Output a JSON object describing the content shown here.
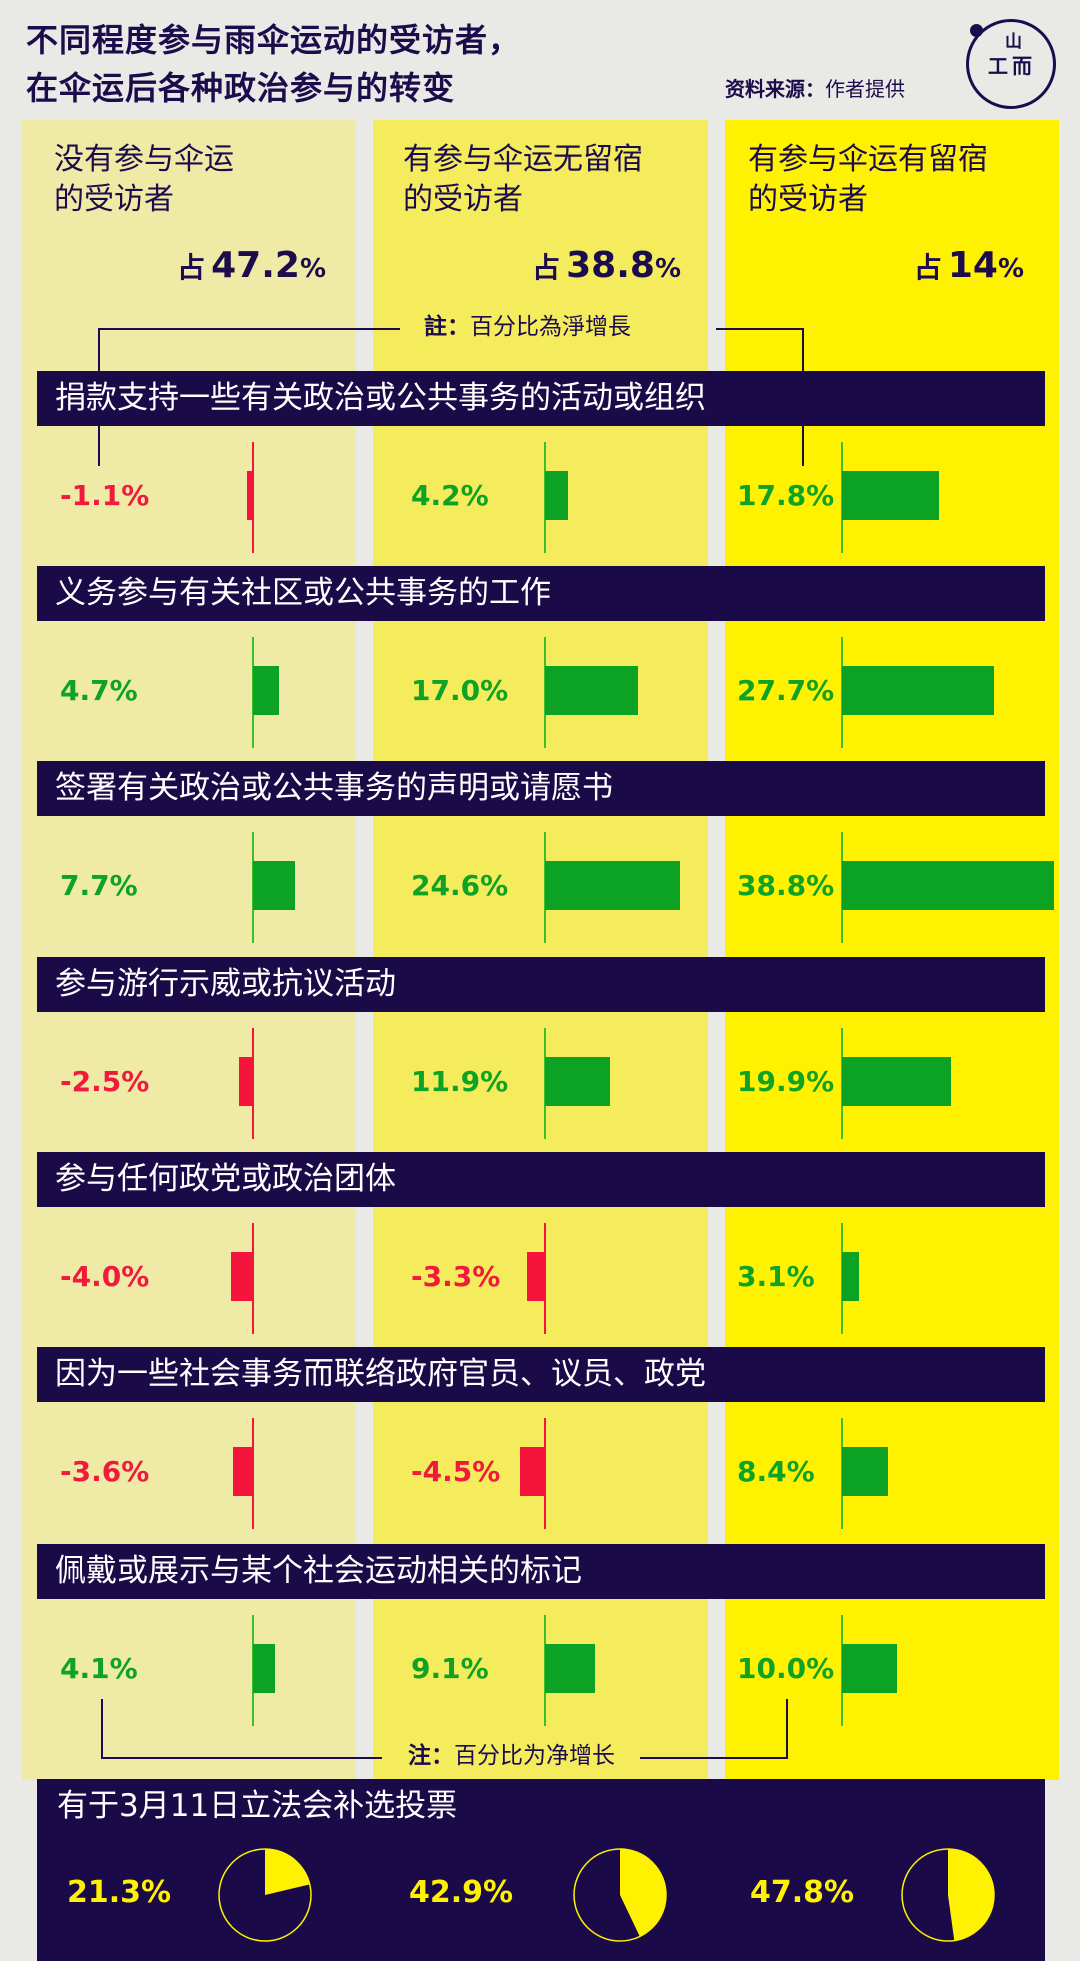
{
  "header": {
    "title_line1": "不同程度参与雨伞运动的受访者，",
    "title_line2": "在伞运后各种政治参与的转变",
    "source_label": "资料来源：",
    "source_value": "作者提供",
    "logo_top": "山",
    "logo_left": "工",
    "logo_right": "而"
  },
  "groups": [
    {
      "label_line1": "没有参与伞运",
      "label_line2": "的受访者",
      "share_prefix": "占",
      "share_value": "47.2",
      "share_unit": "%"
    },
    {
      "label_line1": "有参与伞运无留宿",
      "label_line2": "的受访者",
      "share_prefix": "占",
      "share_value": "38.8",
      "share_unit": "%"
    },
    {
      "label_line1": "有参与伞运有留宿",
      "label_line2": "的受访者",
      "share_prefix": "占",
      "share_value": "14",
      "share_unit": "%"
    }
  ],
  "notes": {
    "top_bold": "註：",
    "top_text": "百分比為淨增長",
    "bottom_bold": "注：",
    "bottom_text": "百分比为净增长"
  },
  "colors": {
    "navy": "#1a0a48",
    "positive": "#0ca324",
    "negative": "#f5143c",
    "group1_bg": "#efeaa6",
    "group2_bg": "#f4eb5d",
    "group3_bg": "#fff200"
  },
  "chart_data": [
    {
      "type": "bar",
      "orientation": "horizontal",
      "title": "不同程度参与雨伞运动的受访者，在伞运后各种政治参与的转变",
      "note": "百分比为净增长",
      "source": "作者提供",
      "series_names": [
        "没有参与伞运的受访者 (占47.2%)",
        "有参与伞运无留宿的受访者 (占38.8%)",
        "有参与伞运有留宿的受访者 (占14%)"
      ],
      "categories": [
        "捐款支持一些有关政治或公共事务的活动或组织",
        "义务参与有关社区或公共事务的工作",
        "签署有关政治或公共事务的声明或请愿书",
        "参与游行示威或抗议活动",
        "参与任何政党或政治团体",
        "因为一些社会事务而联络政府官员、议员、政党",
        "佩戴或展示与某个社会运动相关的标记"
      ],
      "series": [
        {
          "name": "没有参与伞运",
          "values": [
            -1.1,
            4.7,
            7.7,
            -2.5,
            -4.0,
            -3.6,
            4.1
          ]
        },
        {
          "name": "有参与伞运无留宿",
          "values": [
            4.2,
            17.0,
            24.6,
            11.9,
            -3.3,
            -4.5,
            9.1
          ]
        },
        {
          "name": "有参与伞运有留宿",
          "values": [
            17.8,
            27.7,
            38.8,
            19.9,
            3.1,
            8.4,
            10.0
          ]
        }
      ],
      "unit": "%"
    },
    {
      "type": "pie",
      "title": "有于3月11日立法会补选投票",
      "categories": [
        "没有参与伞运",
        "有参与伞运无留宿",
        "有参与伞运有留宿"
      ],
      "values": [
        21.3,
        42.9,
        47.8
      ],
      "unit": "%"
    }
  ],
  "rows": [
    {
      "question": "捐款支持一些有关政治或公共事务的活动或组织",
      "labels": [
        "-1.1%",
        "4.2%",
        "17.8%"
      ]
    },
    {
      "question": "义务参与有关社区或公共事务的工作",
      "labels": [
        "4.7%",
        "17.0%",
        "27.7%"
      ]
    },
    {
      "question": "签署有关政治或公共事务的声明或请愿书",
      "labels": [
        "7.7%",
        "24.6%",
        "38.8%"
      ]
    },
    {
      "question": "参与游行示威或抗议活动",
      "labels": [
        "-2.5%",
        "11.9%",
        "19.9%"
      ]
    },
    {
      "question": "参与任何政党或政治团体",
      "labels": [
        "-4.0%",
        "-3.3%",
        "3.1%"
      ]
    },
    {
      "question": "因为一些社会事务而联络政府官员、议员、政党",
      "labels": [
        "-3.6%",
        "-4.5%",
        "8.4%"
      ]
    },
    {
      "question": "佩戴或展示与某个社会运动相关的标记",
      "labels": [
        "4.1%",
        "9.1%",
        "10.0%"
      ]
    }
  ],
  "vote": {
    "title": "有于3月11日立法会补选投票",
    "labels": [
      "21.3%",
      "42.9%",
      "47.8%"
    ]
  }
}
